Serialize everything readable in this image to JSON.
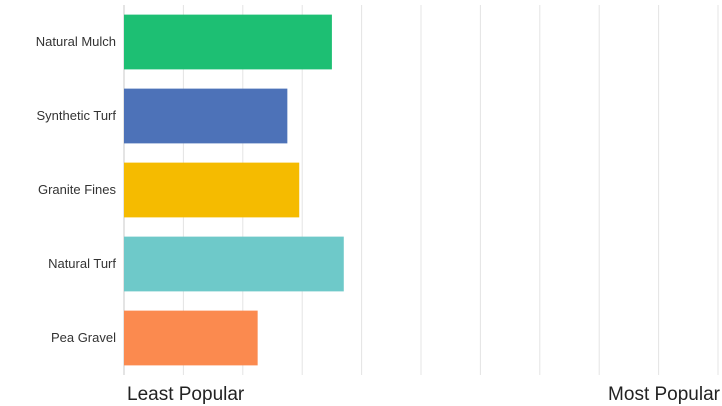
{
  "chart_data": {
    "type": "bar",
    "orientation": "horizontal",
    "categories": [
      "Natural Mulch",
      "Synthetic Turf",
      "Granite Fines",
      "Natural Turf",
      "Pea Gravel"
    ],
    "values": [
      3.5,
      2.75,
      2.95,
      3.7,
      2.25
    ],
    "colors": [
      "#1dbf73",
      "#4d72b8",
      "#f5bb00",
      "#6ec9c9",
      "#fb8a4f"
    ],
    "xlim": [
      0,
      10
    ],
    "x_axis_left_label": "Least Popular",
    "x_axis_right_label": "Most Popular",
    "grid": true
  }
}
